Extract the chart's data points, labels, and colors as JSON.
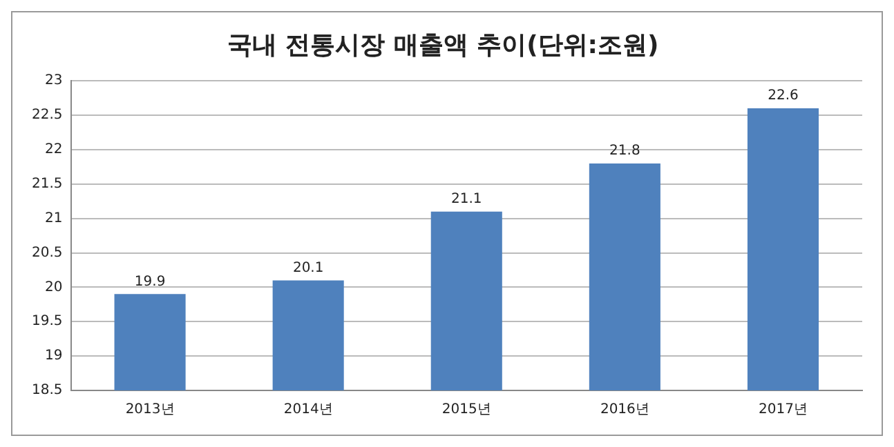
{
  "chart_data": {
    "type": "bar",
    "title": "국내 전통시장 매출액 추이(단위:조원)",
    "categories": [
      "2013년",
      "2014년",
      "2015년",
      "2016년",
      "2017년"
    ],
    "values": [
      19.9,
      20.1,
      21.1,
      21.8,
      22.6
    ],
    "color": "#4f81bd",
    "ylim": [
      18.5,
      23
    ],
    "yticks": [
      18.5,
      19,
      19.5,
      20,
      20.5,
      21,
      21.5,
      22,
      22.5,
      23
    ],
    "grid": "y",
    "data_labels": true,
    "legend": false
  }
}
